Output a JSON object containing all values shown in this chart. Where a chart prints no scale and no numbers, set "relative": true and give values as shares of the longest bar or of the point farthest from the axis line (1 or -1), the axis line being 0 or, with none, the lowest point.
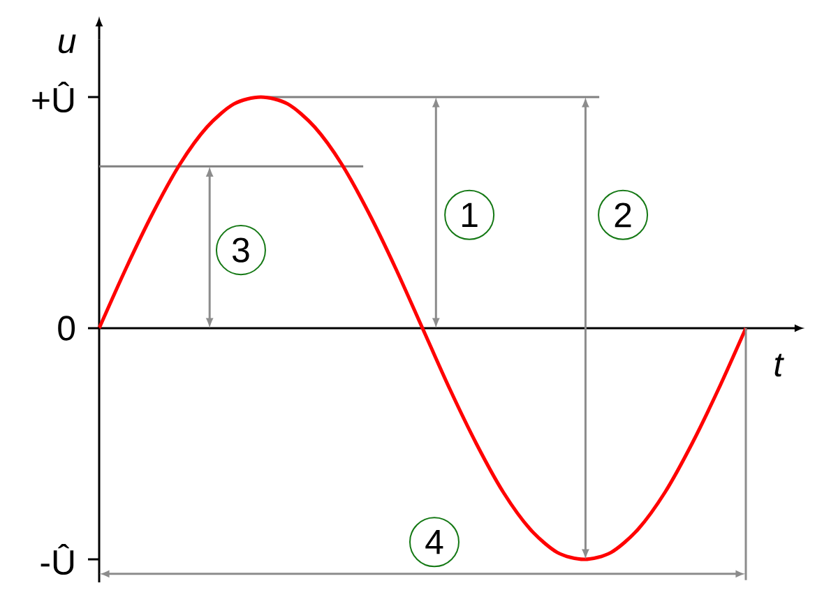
{
  "chart_data": {
    "type": "line",
    "xlabel": "t",
    "ylabel": "u",
    "categories": [
      null,
      null,
      null,
      null,
      null,
      null,
      null,
      null,
      null,
      null,
      null,
      null,
      null,
      null,
      null,
      null,
      null,
      null,
      null,
      null,
      null,
      null,
      null,
      null,
      null
    ],
    "values": [
      0,
      0.26,
      0.5,
      0.71,
      0.87,
      0.97,
      1,
      0.97,
      0.87,
      0.71,
      0.5,
      0.26,
      0,
      -0.26,
      -0.5,
      -0.71,
      -0.87,
      -0.97,
      -1,
      -0.97,
      -0.87,
      -0.71,
      -0.5,
      -0.26,
      0
    ],
    "color": "#ff0000",
    "relative": true,
    "ref_lines": [
      {
        "axis": "y",
        "value": 1,
        "color": "#808080"
      },
      {
        "axis": "y",
        "value": 0.7,
        "color": "#808080"
      }
    ],
    "annotations": [
      "+Û",
      "0",
      "-Û",
      "1",
      "2",
      "3",
      "4"
    ]
  }
}
